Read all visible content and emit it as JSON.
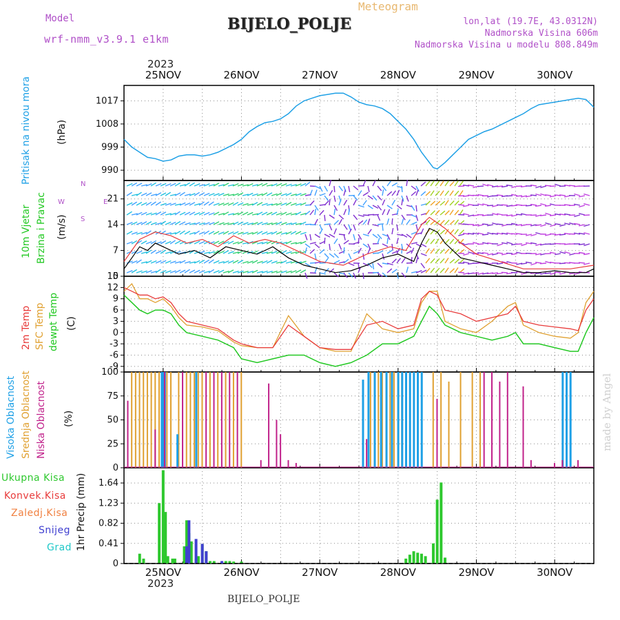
{
  "header": {
    "model_label": "Model",
    "model_name": "wrf-nmm_v3.9.1 e1km",
    "subtitle": "Meteogram",
    "station": "BIJELO_POLJE",
    "lonlat": "lon,lat (19.7E, 43.0312N)",
    "elevation": "Nadmorska Visina 606m",
    "model_elevation": "Nadmorska Visina u modelu 808.849m",
    "footer_station": "BIJELO_POLJE",
    "watermark": "made by Angel",
    "year": "2023"
  },
  "colors": {
    "pressure": "#1ea0e6",
    "temp": "#e83a3a",
    "sfc_temp": "#e0a030",
    "dewpt": "#22c822",
    "total_precip": "#2ec82e",
    "snow": "#4040d0",
    "grad": "#20c8c8",
    "high_cloud": "#1ea0e6",
    "mid_cloud": "#e0a030",
    "low_cloud": "#c0208a"
  },
  "chart_data": [
    {
      "type": "line",
      "ylabel_left": "Pritisak na nivou mora",
      "ylabel_unit": "(hPa)",
      "x_ticks": [
        "25NOV",
        "26NOV",
        "27NOV",
        "28NOV",
        "29NOV",
        "30NOV"
      ],
      "y_ticks": [
        990,
        999,
        1008,
        1017
      ],
      "ylim": [
        986,
        1023
      ],
      "series": [
        {
          "x": [
            24.5,
            24.6,
            24.7,
            24.8,
            24.9,
            25.0,
            25.1,
            25.2,
            25.3,
            25.4,
            25.5,
            25.6,
            25.7,
            25.8,
            25.9,
            26.0,
            26.1,
            26.2,
            26.3,
            26.4,
            26.5,
            26.6,
            26.7,
            26.8,
            26.9,
            27.0,
            27.1,
            27.2,
            27.3,
            27.4,
            27.5,
            27.6,
            27.7,
            27.8,
            27.9,
            28.0,
            28.1,
            28.2,
            28.3,
            28.4,
            28.45,
            28.5,
            28.6,
            28.7,
            28.8,
            28.9,
            29.0,
            29.1,
            29.2,
            29.3,
            29.4,
            29.5,
            29.6,
            29.7,
            29.8,
            29.9,
            30.0,
            30.1,
            30.2,
            30.3,
            30.4,
            30.5
          ],
          "y": [
            1002,
            999,
            997,
            995,
            994.5,
            993.5,
            994,
            995.5,
            996,
            996,
            995.5,
            996,
            997,
            998.5,
            1000,
            1002,
            1005,
            1007,
            1008.5,
            1009,
            1010,
            1012,
            1015,
            1017,
            1018,
            1019,
            1019.5,
            1020,
            1020,
            1018.5,
            1016.5,
            1015.5,
            1015,
            1014,
            1012,
            1009,
            1006,
            1002,
            997,
            993,
            991,
            990.5,
            993,
            996,
            999,
            1002,
            1003.5,
            1005,
            1006,
            1007.5,
            1009,
            1010.5,
            1012,
            1014,
            1015.5,
            1016,
            1016.5,
            1017,
            1017.5,
            1018,
            1017.5,
            1014.5
          ]
        }
      ]
    },
    {
      "type": "line",
      "ylabel_left": "10m Vjetar",
      "ylabel_left2": "Brzina i Pravac",
      "ylabel_unit": "(m/s)",
      "compass": {
        "n": "N",
        "s": "S",
        "e": "E",
        "w": "W"
      },
      "y_ticks": [
        0,
        7,
        14,
        21
      ],
      "ylim": [
        0,
        26
      ],
      "series": [
        {
          "name": "speed",
          "x": [
            24.5,
            24.6,
            24.7,
            24.8,
            24.9,
            25.0,
            25.2,
            25.4,
            25.6,
            25.8,
            26.0,
            26.2,
            26.4,
            26.6,
            26.8,
            27.0,
            27.2,
            27.4,
            27.6,
            27.8,
            28.0,
            28.2,
            28.3,
            28.4,
            28.5,
            28.6,
            28.7,
            28.8,
            29.0,
            29.2,
            29.4,
            29.6,
            29.8,
            30.0,
            30.2,
            30.4,
            30.5
          ],
          "y": [
            2,
            5,
            8,
            7,
            9,
            8,
            6,
            7,
            5,
            8,
            7,
            6,
            8,
            5,
            3,
            2,
            1,
            1.5,
            3,
            5,
            6,
            4,
            9,
            13,
            12,
            9,
            7,
            5,
            4,
            3,
            2,
            1,
            1,
            1.5,
            1,
            1,
            2
          ]
        },
        {
          "name": "gust",
          "x": [
            24.5,
            24.7,
            24.9,
            25.1,
            25.3,
            25.5,
            25.7,
            25.9,
            26.1,
            26.3,
            26.5,
            26.7,
            27.0,
            27.3,
            27.6,
            27.9,
            28.1,
            28.3,
            28.4,
            28.6,
            28.8,
            29.0,
            29.3,
            29.6,
            29.9,
            30.2,
            30.5
          ],
          "y": [
            4,
            10,
            12,
            11,
            9,
            10,
            8,
            11,
            9,
            10,
            9,
            7,
            4,
            3,
            6,
            8,
            7,
            14,
            16,
            13,
            9,
            6,
            4,
            2,
            2,
            2,
            3
          ]
        }
      ]
    },
    {
      "type": "line",
      "ylabel_left": "2m Temp",
      "ylabel_left2": "SFC Temp",
      "ylabel_left3": "dewpt Temp",
      "ylabel_unit": "(C)",
      "y_ticks": [
        -9,
        -6,
        -3,
        0,
        3,
        6,
        9,
        12,
        15
      ],
      "ylim": [
        -10.5,
        15
      ],
      "series": [
        {
          "name": "2m Temp",
          "x": [
            24.5,
            24.6,
            24.7,
            24.8,
            24.9,
            25.0,
            25.1,
            25.2,
            25.3,
            25.5,
            25.7,
            25.9,
            26.0,
            26.2,
            26.4,
            26.6,
            26.8,
            27.0,
            27.2,
            27.4,
            27.6,
            27.8,
            28.0,
            28.2,
            28.3,
            28.4,
            28.5,
            28.6,
            28.8,
            29.0,
            29.2,
            29.4,
            29.5,
            29.6,
            29.8,
            30.0,
            30.2,
            30.3,
            30.4,
            30.5
          ],
          "y": [
            12,
            11,
            10,
            10,
            9,
            9.5,
            8,
            5,
            3,
            2,
            1,
            -2,
            -3,
            -4,
            -4,
            2,
            -1,
            -4,
            -4.5,
            -4.5,
            2,
            3,
            1,
            2,
            9,
            11,
            10,
            6,
            5,
            3,
            4,
            5,
            7,
            3,
            2,
            1.5,
            1,
            0.5,
            6,
            9
          ]
        },
        {
          "name": "SFC Temp",
          "x": [
            24.5,
            24.6,
            24.7,
            24.8,
            24.9,
            25.0,
            25.1,
            25.2,
            25.3,
            25.5,
            25.7,
            25.9,
            26.0,
            26.2,
            26.4,
            26.6,
            26.8,
            27.0,
            27.2,
            27.4,
            27.6,
            27.8,
            28.0,
            28.2,
            28.3,
            28.4,
            28.5,
            28.6,
            28.8,
            29.0,
            29.2,
            29.4,
            29.5,
            29.6,
            29.8,
            30.0,
            30.2,
            30.3,
            30.4,
            30.5
          ],
          "y": [
            11,
            13,
            9,
            9,
            8,
            9,
            7,
            4,
            2,
            1.5,
            0.5,
            -2.5,
            -3.5,
            -4,
            -4,
            4.5,
            -1,
            -4,
            -5,
            -5,
            5,
            1,
            0,
            1,
            8,
            11,
            11,
            3,
            1,
            0,
            3,
            7,
            8,
            2,
            0,
            -1,
            -1.5,
            0,
            8,
            11
          ]
        },
        {
          "name": "dewpt Temp",
          "x": [
            24.5,
            24.6,
            24.7,
            24.8,
            24.9,
            25.0,
            25.1,
            25.2,
            25.3,
            25.5,
            25.7,
            25.9,
            26.0,
            26.2,
            26.4,
            26.6,
            26.8,
            27.0,
            27.2,
            27.4,
            27.6,
            27.8,
            28.0,
            28.2,
            28.3,
            28.4,
            28.5,
            28.6,
            28.8,
            29.0,
            29.2,
            29.4,
            29.5,
            29.6,
            29.8,
            30.0,
            30.2,
            30.3,
            30.4,
            30.5
          ],
          "y": [
            10,
            8,
            6,
            5,
            6,
            6,
            5,
            2,
            0,
            -1,
            -2,
            -4,
            -7,
            -8,
            -7,
            -6,
            -6,
            -8,
            -9,
            -8,
            -6,
            -3,
            -3,
            -1,
            3,
            7,
            5,
            2,
            0,
            -1,
            -2,
            -1,
            0,
            -3,
            -3,
            -4,
            -5,
            -5,
            0,
            4
          ]
        }
      ]
    },
    {
      "type": "bar",
      "ylabel_left": "Visoka Oblacnost",
      "ylabel_left2": "Srednja Oblacnost",
      "ylabel_left3": "Niska Oblacnost",
      "ylabel_unit": "(%)",
      "y_ticks": [
        0,
        25,
        50,
        75,
        100
      ],
      "ylim": [
        0,
        100
      ],
      "series": [
        {
          "name": "Srednja Oblacnost",
          "x": [
            24.6,
            24.65,
            24.7,
            24.75,
            24.8,
            24.85,
            24.9,
            24.95,
            25.0,
            25.05,
            25.1,
            25.2,
            25.3,
            25.35,
            25.4,
            25.45,
            25.5,
            25.6,
            25.7,
            25.8,
            25.9,
            26.0,
            27.65,
            27.7,
            27.75,
            27.8,
            27.85,
            27.9,
            27.95,
            28.0,
            28.05,
            28.1,
            28.45,
            28.55,
            28.65,
            28.8,
            28.95,
            29.05
          ],
          "y": [
            100,
            100,
            100,
            100,
            100,
            100,
            100,
            100,
            100,
            100,
            100,
            100,
            100,
            100,
            100,
            100,
            100,
            100,
            100,
            100,
            100,
            100,
            100,
            100,
            100,
            100,
            100,
            100,
            100,
            100,
            100,
            100,
            100,
            100,
            90,
            100,
            100,
            100
          ]
        },
        {
          "name": "Visoka Oblacnost",
          "x": [
            24.98,
            25.0,
            25.02,
            25.18,
            25.42,
            27.55,
            27.62,
            27.7,
            27.78,
            27.85,
            27.92,
            28.0,
            28.05,
            28.1,
            28.15,
            28.2,
            28.25,
            28.3,
            30.1,
            30.15,
            30.2
          ],
          "y": [
            100,
            100,
            100,
            35,
            100,
            92,
            100,
            100,
            100,
            100,
            100,
            100,
            100,
            100,
            100,
            100,
            100,
            100,
            100,
            100,
            100
          ]
        },
        {
          "name": "Niska Oblacnost",
          "x": [
            24.55,
            24.9,
            25.02,
            25.25,
            25.55,
            25.65,
            25.75,
            25.85,
            25.95,
            26.25,
            26.35,
            26.45,
            26.5,
            26.6,
            26.7,
            27.6,
            28.5,
            29.1,
            29.2,
            29.3,
            29.4,
            29.6,
            29.7,
            30.0,
            30.1,
            30.3
          ],
          "y": [
            70,
            40,
            100,
            100,
            100,
            100,
            100,
            100,
            100,
            8,
            88,
            50,
            35,
            8,
            5,
            30,
            72,
            100,
            100,
            90,
            100,
            85,
            8,
            5,
            8,
            8
          ]
        }
      ]
    },
    {
      "type": "bar",
      "ylabel_unit": "1hr Precip (mm)",
      "legend": [
        "Ukupna Kisa",
        "Konvek.Kisa",
        "Zaledj.Kisa",
        "Snijeg",
        "Grad"
      ],
      "y_ticks": [
        0,
        0.41,
        0.82,
        1.23,
        1.64
      ],
      "ylim": [
        0,
        1.95
      ],
      "series": [
        {
          "name": "Ukupna Kisa",
          "x": [
            24.7,
            24.75,
            24.95,
            25.0,
            25.03,
            25.06,
            25.12,
            25.15,
            25.27,
            25.3,
            25.33,
            25.36,
            25.42,
            25.45,
            25.5,
            25.55,
            25.6,
            25.65,
            25.75,
            25.8,
            25.85,
            25.9,
            26.0,
            28.1,
            28.15,
            28.2,
            28.25,
            28.3,
            28.35,
            28.45,
            28.5,
            28.55,
            28.6
          ],
          "y": [
            0.2,
            0.1,
            1.23,
            1.9,
            1.05,
            0.15,
            0.1,
            0.1,
            0.35,
            0.88,
            0.62,
            0.45,
            0.1,
            0.15,
            0.4,
            0.25,
            0.05,
            0.05,
            0.03,
            0.05,
            0.05,
            0.04,
            0.04,
            0.1,
            0.18,
            0.25,
            0.22,
            0.2,
            0.15,
            0.41,
            1.3,
            1.65,
            0.12
          ]
        },
        {
          "name": "Snijeg",
          "x": [
            25.3,
            25.33,
            25.42,
            25.5,
            25.55,
            25.75
          ],
          "y": [
            0.35,
            0.88,
            0.5,
            0.4,
            0.25,
            0.05
          ]
        }
      ]
    }
  ]
}
